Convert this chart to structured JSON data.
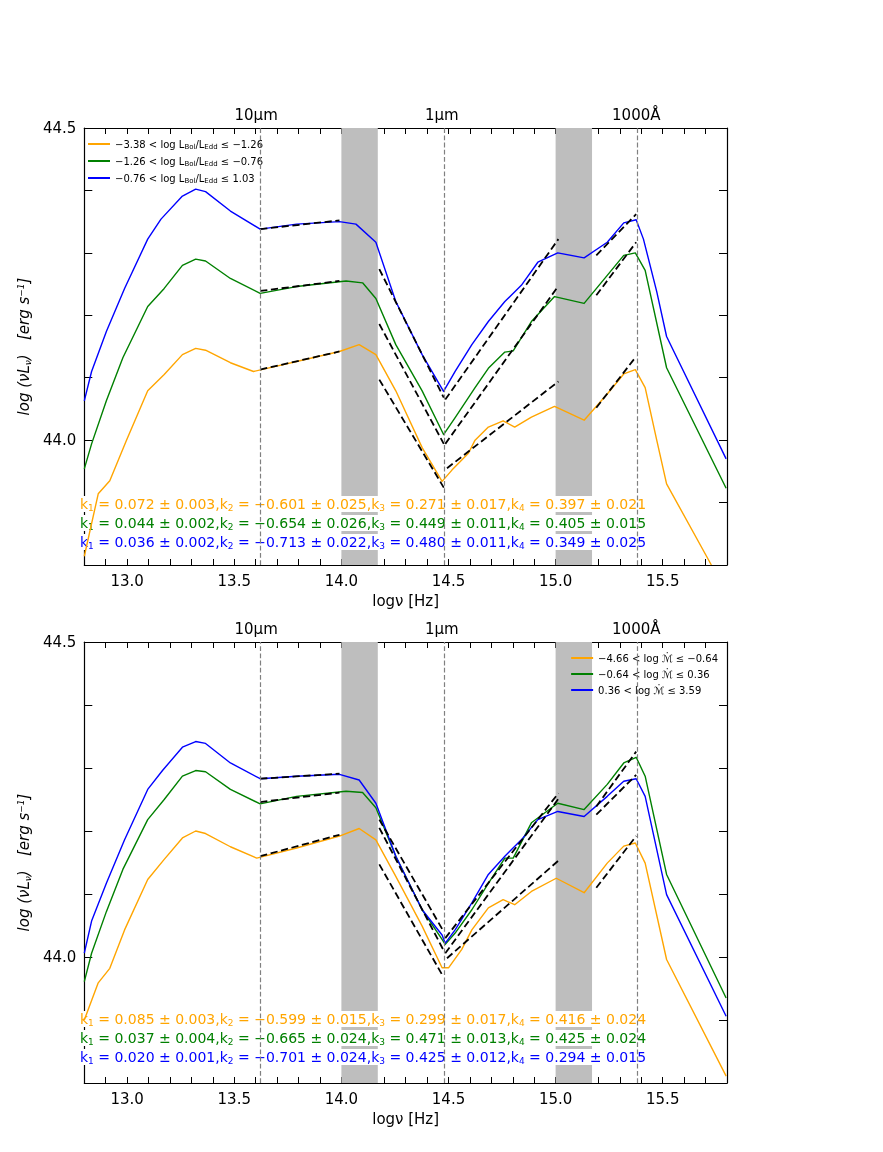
{
  "chart_data": [
    {
      "type": "line",
      "xlabel": "logν [Hz]",
      "ylabel": "log (νL$_{ν}$)   [erg s$^{−1}$]",
      "legend": "top left",
      "marker": "none",
      "line_style": "solid",
      "grid": false,
      "xlim": [
        12.8,
        15.8
      ],
      "ylim": [
        43.8,
        44.5
      ],
      "xticks": [
        {
          "value": 12.9,
          "label": null
        },
        {
          "value": 13,
          "label": "13.0"
        },
        {
          "value": 13.1,
          "label": null
        },
        {
          "value": 13.2,
          "label": null
        },
        {
          "value": 13.3,
          "label": null
        },
        {
          "value": 13.4,
          "label": null
        },
        13.5,
        {
          "value": 13.6,
          "label": null
        },
        {
          "value": 13.7,
          "label": null
        },
        {
          "value": 13.8,
          "label": null
        },
        {
          "value": 13.9,
          "label": null
        },
        {
          "value": 14,
          "label": "14.0"
        },
        {
          "value": 14.1,
          "label": null
        },
        {
          "value": 14.2,
          "label": null
        },
        {
          "value": 14.3,
          "label": null
        },
        {
          "value": 14.4,
          "label": null
        },
        14.5,
        {
          "value": 14.6,
          "label": null
        },
        {
          "value": 14.7,
          "label": null
        },
        {
          "value": 14.8,
          "label": null
        },
        {
          "value": 14.9,
          "label": null
        },
        {
          "value": 15,
          "label": "15.0"
        },
        {
          "value": 15.1,
          "label": null
        },
        {
          "value": 15.2,
          "label": null
        },
        {
          "value": 15.3,
          "label": null
        },
        {
          "value": 15.4,
          "label": null
        },
        15.5,
        {
          "value": 15.6,
          "label": null
        },
        {
          "value": 15.7,
          "label": null
        }
      ],
      "yticks": [
        {
          "value": 43.9,
          "label": null
        },
        {
          "value": 44,
          "label": "44.0"
        },
        {
          "value": 44.1,
          "label": null
        },
        {
          "value": 44.2,
          "label": null
        },
        {
          "value": 44.3,
          "label": null
        },
        {
          "value": 44.4,
          "label": null
        },
        44.5
      ],
      "ref_lines": [
        {
          "axis": "x",
          "value": 13.62,
          "color": "#808080",
          "line_style": "dashed"
        },
        {
          "axis": "x",
          "value": 14.48,
          "color": "#808080",
          "line_style": "dashed"
        },
        {
          "axis": "x",
          "value": 15.38,
          "color": "#808080",
          "line_style": "dashed"
        }
      ],
      "bands": [
        {
          "axis": "x",
          "from": 14.0,
          "to": 14.17,
          "color": "#bebebe"
        },
        {
          "axis": "x",
          "from": 15.0,
          "to": 15.17,
          "color": "#bebebe"
        }
      ],
      "annotations": [
        "k$_{1}$ = 0.072 ± 0.003,k$_{2}$ = −0.601 ± 0.025,k$_{3}$ = 0.271 ± 0.017,k$_{4}$ = 0.397 ± 0.021",
        "k$_{1}$ = 0.044 ± 0.002,k$_{2}$ = −0.654 ± 0.026,k$_{3}$ = 0.449 ± 0.011,k$_{4}$ = 0.405 ± 0.015",
        "k$_{1}$ = 0.036 ± 0.002,k$_{2}$ = −0.713 ± 0.022,k$_{3}$ = 0.480 ± 0.011,k$_{4}$ = 0.349 ± 0.025",
        {
          "text": "10μm",
          "x": 13.62,
          "y": 44.5
        },
        {
          "text": "1μm",
          "x": 14.48,
          "y": 44.5
        },
        {
          "text": "1000Å",
          "x": 15.38,
          "y": 44.5
        }
      ],
      "series": [
        {
          "name": "−3.38 < log L$_{Bol}$/L$_{Edd}$ ≤ −1.26",
          "color": "#ffa500",
          "x": [
            12.8,
            12.865,
            12.919,
            12.996,
            13.096,
            13.173,
            13.258,
            13.32,
            13.366,
            13.482,
            13.59,
            13.791,
            13.991,
            14.083,
            14.161,
            14.254,
            14.377,
            14.47,
            14.516,
            14.593,
            14.624,
            14.686,
            14.755,
            14.809,
            14.887,
            14.995,
            15.133,
            15.241,
            15.318,
            15.372,
            15.418,
            15.472,
            15.518,
            15.727
          ],
          "values": [
            43.814,
            43.914,
            43.935,
            43.999,
            44.079,
            44.105,
            44.137,
            44.147,
            44.144,
            44.124,
            44.11,
            44.126,
            44.142,
            44.153,
            44.137,
            44.079,
            43.988,
            43.934,
            43.952,
            43.979,
            44.0,
            44.021,
            44.031,
            44.021,
            44.037,
            44.054,
            44.032,
            44.074,
            44.106,
            44.113,
            44.084,
            44.0,
            43.93,
            43.8
          ]
        },
        {
          "name": "−1.26 < log L$_{Bol}$/L$_{Edd}$ ≤ −0.76",
          "color": "#008000",
          "x": [
            12.8,
            12.834,
            12.903,
            12.98,
            13.096,
            13.173,
            13.258,
            13.32,
            13.366,
            13.482,
            13.621,
            13.791,
            14.022,
            14.099,
            14.161,
            14.254,
            14.377,
            14.477,
            14.531,
            14.624,
            14.686,
            14.763,
            14.802,
            14.887,
            14.995,
            15.133,
            15.241,
            15.318,
            15.372,
            15.418,
            15.518,
            15.796
          ],
          "values": [
            43.954,
            43.994,
            44.063,
            44.132,
            44.214,
            44.243,
            44.28,
            44.29,
            44.287,
            44.259,
            44.235,
            44.246,
            44.255,
            44.252,
            44.227,
            44.153,
            44.079,
            44.009,
            44.036,
            44.084,
            44.115,
            44.141,
            44.143,
            44.19,
            44.23,
            44.219,
            44.264,
            44.296,
            44.3,
            44.272,
            44.116,
            43.923
          ]
        },
        {
          "name": "−0.76 < log L$_{Bol}$/L$_{Edd}$ ≤ 1.03",
          "color": "#0000ff",
          "x": [
            12.8,
            12.834,
            12.903,
            12.988,
            13.096,
            13.158,
            13.258,
            13.32,
            13.366,
            13.482,
            13.621,
            13.791,
            13.991,
            14.068,
            14.161,
            14.254,
            14.377,
            14.477,
            14.531,
            14.609,
            14.686,
            14.763,
            14.84,
            14.917,
            15.01,
            15.133,
            15.241,
            15.318,
            15.376,
            15.41,
            15.472,
            15.518,
            15.796
          ],
          "values": [
            44.063,
            44.11,
            44.174,
            44.243,
            44.322,
            44.354,
            44.391,
            44.402,
            44.398,
            44.367,
            44.338,
            44.346,
            44.35,
            44.346,
            44.317,
            44.222,
            44.137,
            44.078,
            44.11,
            44.153,
            44.19,
            44.222,
            44.248,
            44.285,
            44.3,
            44.292,
            44.317,
            44.348,
            44.353,
            44.322,
            44.238,
            44.166,
            43.97
          ]
        },
        {
          "type": "line",
          "color": "#000000",
          "line_style": "dashed",
          "x": [
            13.621,
            13.991
          ],
          "values": [
            44.113,
            44.142
          ]
        },
        {
          "type": "line",
          "color": "#000000",
          "line_style": "dashed",
          "x": [
            13.621,
            13.991
          ],
          "values": [
            44.239,
            44.255
          ]
        },
        {
          "type": "line",
          "color": "#000000",
          "line_style": "dashed",
          "x": [
            13.621,
            13.991
          ],
          "values": [
            44.338,
            44.352
          ]
        },
        {
          "type": "line",
          "color": "#000000",
          "line_style": "dashed",
          "x": [
            14.177,
            14.478
          ],
          "values": [
            44.097,
            43.924
          ]
        },
        {
          "type": "line",
          "color": "#000000",
          "line_style": "dashed",
          "x": [
            14.177,
            14.478
          ],
          "values": [
            44.186,
            43.994
          ]
        },
        {
          "type": "line",
          "color": "#000000",
          "line_style": "dashed",
          "x": [
            14.177,
            14.478
          ],
          "values": [
            44.274,
            44.068
          ]
        },
        {
          "type": "line",
          "color": "#000000",
          "line_style": "dashed",
          "x": [
            14.493,
            15.013
          ],
          "values": [
            43.955,
            44.094
          ]
        },
        {
          "type": "line",
          "color": "#000000",
          "line_style": "dashed",
          "x": [
            14.485,
            15.013
          ],
          "values": [
            43.994,
            44.247
          ]
        },
        {
          "type": "line",
          "color": "#000000",
          "line_style": "dashed",
          "x": [
            14.485,
            15.013
          ],
          "values": [
            44.065,
            44.322
          ]
        },
        {
          "type": "line",
          "color": "#000000",
          "line_style": "dashed",
          "x": [
            15.19,
            15.376
          ],
          "values": [
            44.052,
            44.134
          ]
        },
        {
          "type": "line",
          "color": "#000000",
          "line_style": "dashed",
          "x": [
            15.19,
            15.376
          ],
          "values": [
            44.232,
            44.317
          ]
        },
        {
          "type": "line",
          "color": "#000000",
          "line_style": "dashed",
          "x": [
            15.19,
            15.376
          ],
          "values": [
            44.296,
            44.362
          ]
        }
      ]
    },
    {
      "type": "line",
      "xlabel": "logν [Hz]",
      "ylabel": "log (νL$_{ν}$)   [erg s$^{−1}$]",
      "legend": "top right",
      "marker": "none",
      "line_style": "solid",
      "grid": false,
      "xlim": [
        12.8,
        15.8
      ],
      "ylim": [
        43.8,
        44.5
      ],
      "xticks": [
        {
          "value": 12.9,
          "label": null
        },
        {
          "value": 13,
          "label": "13.0"
        },
        {
          "value": 13.1,
          "label": null
        },
        {
          "value": 13.2,
          "label": null
        },
        {
          "value": 13.3,
          "label": null
        },
        {
          "value": 13.4,
          "label": null
        },
        13.5,
        {
          "value": 13.6,
          "label": null
        },
        {
          "value": 13.7,
          "label": null
        },
        {
          "value": 13.8,
          "label": null
        },
        {
          "value": 13.9,
          "label": null
        },
        {
          "value": 14,
          "label": "14.0"
        },
        {
          "value": 14.1,
          "label": null
        },
        {
          "value": 14.2,
          "label": null
        },
        {
          "value": 14.3,
          "label": null
        },
        {
          "value": 14.4,
          "label": null
        },
        14.5,
        {
          "value": 14.6,
          "label": null
        },
        {
          "value": 14.7,
          "label": null
        },
        {
          "value": 14.8,
          "label": null
        },
        {
          "value": 14.9,
          "label": null
        },
        {
          "value": 15,
          "label": "15.0"
        },
        {
          "value": 15.1,
          "label": null
        },
        {
          "value": 15.2,
          "label": null
        },
        {
          "value": 15.3,
          "label": null
        },
        {
          "value": 15.4,
          "label": null
        },
        15.5,
        {
          "value": 15.6,
          "label": null
        },
        {
          "value": 15.7,
          "label": null
        }
      ],
      "yticks": [
        {
          "value": 43.9,
          "label": null
        },
        {
          "value": 44,
          "label": "44.0"
        },
        {
          "value": 44.1,
          "label": null
        },
        {
          "value": 44.2,
          "label": null
        },
        {
          "value": 44.3,
          "label": null
        },
        {
          "value": 44.4,
          "label": null
        },
        44.5
      ],
      "ref_lines": [
        {
          "axis": "x",
          "value": 13.62,
          "color": "#808080",
          "line_style": "dashed"
        },
        {
          "axis": "x",
          "value": 14.48,
          "color": "#808080",
          "line_style": "dashed"
        },
        {
          "axis": "x",
          "value": 15.38,
          "color": "#808080",
          "line_style": "dashed"
        }
      ],
      "bands": [
        {
          "axis": "x",
          "from": 14.0,
          "to": 14.17,
          "color": "#bebebe"
        },
        {
          "axis": "x",
          "from": 15.0,
          "to": 15.17,
          "color": "#bebebe"
        }
      ],
      "annotations": [
        "k$_{1}$ = 0.085 ± 0.003,k$_{2}$ = −0.599 ± 0.015,k$_{3}$ = 0.299 ± 0.017,k$_{4}$ = 0.416 ± 0.024",
        "k$_{1}$ = 0.037 ± 0.004,k$_{2}$ = −0.665 ± 0.024,k$_{3}$ = 0.471 ± 0.013,k$_{4}$ = 0.425 ± 0.024",
        "k$_{1}$ = 0.020 ± 0.001,k$_{2}$ = −0.701 ± 0.024,k$_{3}$ = 0.425 ± 0.012,k$_{4}$ = 0.294 ± 0.015",
        {
          "text": "10μm",
          "x": 13.62,
          "y": 44.5
        },
        {
          "text": "1μm",
          "x": 14.48,
          "y": 44.5
        },
        {
          "text": "1000Å",
          "x": 15.38,
          "y": 44.5
        }
      ],
      "series": [
        {
          "name": "−4.66 < log ℳ̇ ≤ −0.64",
          "color": "#ffa500",
          "x": [
            12.8,
            12.865,
            12.919,
            12.988,
            13.096,
            13.173,
            13.258,
            13.32,
            13.366,
            13.482,
            13.605,
            13.791,
            13.991,
            14.083,
            14.161,
            14.254,
            14.377,
            14.47,
            14.501,
            14.562,
            14.609,
            14.686,
            14.755,
            14.809,
            14.887,
            15.003,
            15.133,
            15.241,
            15.318,
            15.372,
            15.418,
            15.518,
            15.796
          ],
          "values": [
            43.9,
            43.959,
            43.982,
            44.043,
            44.123,
            44.155,
            44.189,
            44.2,
            44.196,
            44.175,
            44.157,
            44.173,
            44.192,
            44.204,
            44.186,
            44.128,
            44.049,
            43.983,
            43.983,
            44.012,
            44.043,
            44.078,
            44.091,
            44.083,
            44.104,
            44.125,
            44.102,
            44.149,
            44.176,
            44.181,
            44.149,
            43.996,
            43.811
          ]
        },
        {
          "name": "−0.64 < log ℳ̇ ≤ 0.36",
          "color": "#008000",
          "x": [
            12.8,
            12.834,
            12.903,
            12.98,
            13.096,
            13.173,
            13.258,
            13.32,
            13.366,
            13.482,
            13.621,
            13.791,
            14.022,
            14.099,
            14.161,
            14.254,
            14.377,
            14.47,
            14.485,
            14.531,
            14.609,
            14.686,
            14.763,
            14.802,
            14.887,
            15.01,
            15.133,
            15.241,
            15.318,
            15.376,
            15.418,
            15.518,
            15.796
          ],
          "values": [
            43.961,
            44.006,
            44.072,
            44.139,
            44.218,
            44.25,
            44.287,
            44.296,
            44.294,
            44.266,
            44.243,
            44.255,
            44.263,
            44.261,
            44.237,
            44.16,
            44.075,
            44.028,
            44.02,
            44.038,
            44.075,
            44.117,
            44.157,
            44.157,
            44.213,
            44.244,
            44.234,
            44.274,
            44.308,
            44.317,
            44.287,
            44.131,
            43.935
          ]
        },
        {
          "name": "0.36 < log ℳ̇ ≤ 3.59",
          "color": "#0000ff",
          "x": [
            12.8,
            12.834,
            12.903,
            12.988,
            13.096,
            13.165,
            13.258,
            13.32,
            13.366,
            13.482,
            13.621,
            13.791,
            13.991,
            14.083,
            14.161,
            14.254,
            14.377,
            14.47,
            14.485,
            14.531,
            14.609,
            14.686,
            14.763,
            14.84,
            14.917,
            15.01,
            15.133,
            15.241,
            15.318,
            15.376,
            15.418,
            15.518,
            15.796
          ],
          "values": [
            44.006,
            44.057,
            44.117,
            44.186,
            44.266,
            44.296,
            44.333,
            44.342,
            44.339,
            44.308,
            44.283,
            44.287,
            44.29,
            44.281,
            44.244,
            44.16,
            44.075,
            44.035,
            44.022,
            44.043,
            44.086,
            44.131,
            44.16,
            44.186,
            44.218,
            44.231,
            44.223,
            44.255,
            44.279,
            44.283,
            44.255,
            44.099,
            43.906
          ]
        },
        {
          "type": "line",
          "color": "#000000",
          "line_style": "dashed",
          "x": [
            13.621,
            13.991
          ],
          "values": [
            44.16,
            44.194
          ]
        },
        {
          "type": "line",
          "color": "#000000",
          "line_style": "dashed",
          "x": [
            13.621,
            13.991
          ],
          "values": [
            44.246,
            44.261
          ]
        },
        {
          "type": "line",
          "color": "#000000",
          "line_style": "dashed",
          "x": [
            13.621,
            13.991
          ],
          "values": [
            44.283,
            44.291
          ]
        },
        {
          "type": "line",
          "color": "#000000",
          "line_style": "dashed",
          "x": [
            14.177,
            14.47
          ],
          "values": [
            44.147,
            43.972
          ]
        },
        {
          "type": "line",
          "color": "#000000",
          "line_style": "dashed",
          "x": [
            14.177,
            14.478
          ],
          "values": [
            44.205,
            44.01
          ]
        },
        {
          "type": "line",
          "color": "#000000",
          "line_style": "dashed",
          "x": [
            14.177,
            14.478
          ],
          "values": [
            44.218,
            44.04
          ]
        },
        {
          "type": "line",
          "color": "#000000",
          "line_style": "dashed",
          "x": [
            14.493,
            15.013
          ],
          "values": [
            43.998,
            44.153
          ]
        },
        {
          "type": "line",
          "color": "#000000",
          "line_style": "dashed",
          "x": [
            14.485,
            15.013
          ],
          "values": [
            44.006,
            44.251
          ]
        },
        {
          "type": "line",
          "color": "#000000",
          "line_style": "dashed",
          "x": [
            14.485,
            15.013
          ],
          "values": [
            44.03,
            44.26
          ]
        },
        {
          "type": "line",
          "color": "#000000",
          "line_style": "dashed",
          "x": [
            15.19,
            15.376
          ],
          "values": [
            44.11,
            44.192
          ]
        },
        {
          "type": "line",
          "color": "#000000",
          "line_style": "dashed",
          "x": [
            15.19,
            15.376
          ],
          "values": [
            44.239,
            44.326
          ]
        },
        {
          "type": "line",
          "color": "#000000",
          "line_style": "dashed",
          "x": [
            15.19,
            15.376
          ],
          "values": [
            44.226,
            44.289
          ]
        }
      ]
    }
  ]
}
